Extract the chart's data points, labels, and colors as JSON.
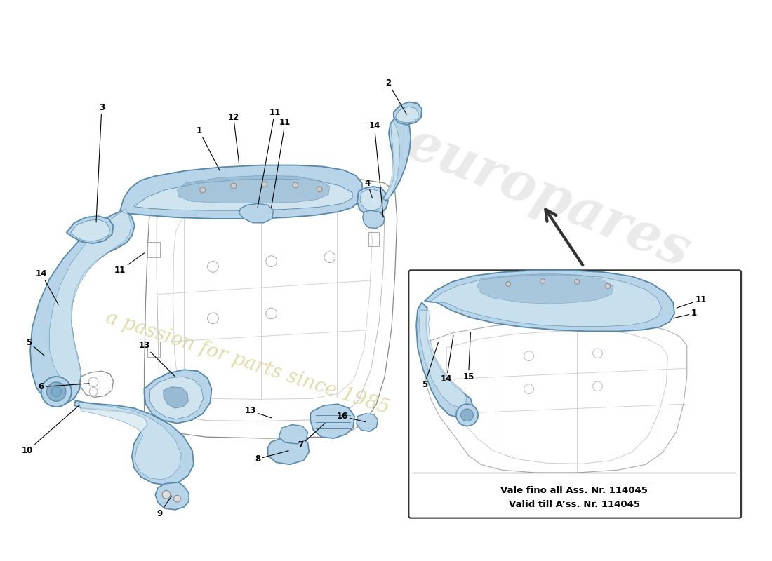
{
  "background_color": "#ffffff",
  "part_fill": "#b8d4e8",
  "part_fill_dark": "#8ab0cc",
  "part_fill_light": "#d0e4f0",
  "part_edge": "#5588aa",
  "frame_edge": "#aaaaaa",
  "frame_edge_dark": "#888888",
  "text_color": "#000000",
  "note_line1": "Vale fino all Ass. Nr. 114045",
  "note_line2": "Valid till A’ss. Nr. 114045",
  "watermark1": "europares",
  "watermark2": "a passion for parts since 1985",
  "figsize": [
    11.0,
    8.0
  ],
  "dpi": 100
}
